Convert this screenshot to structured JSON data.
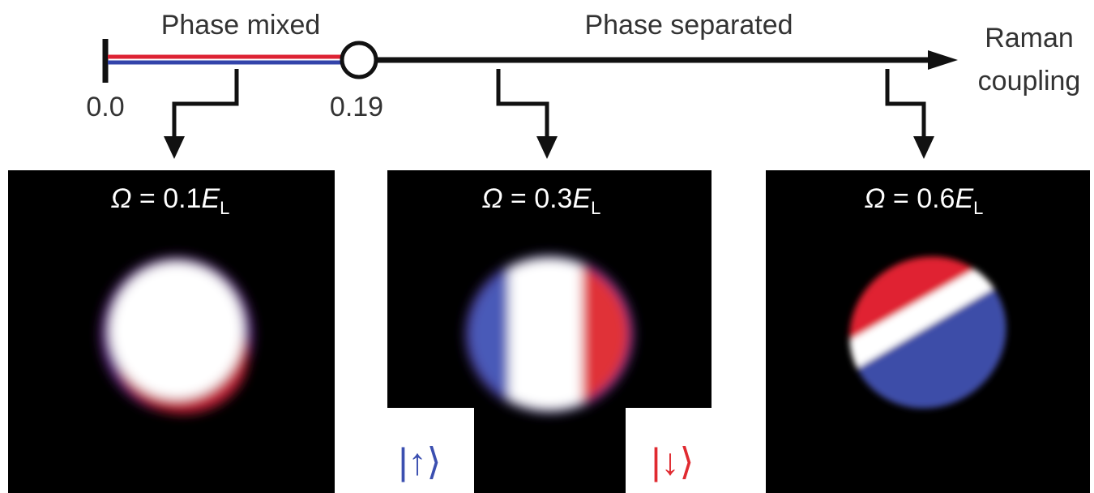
{
  "timeline": {
    "left_region": "Phase mixed",
    "right_region": "Phase separated",
    "axis_label": [
      "Raman",
      "coupling"
    ],
    "ticks": [
      "0.0",
      "0.19"
    ]
  },
  "panels": [
    {
      "symbol": "Ω",
      "equals": " = 0.1",
      "energy": "E",
      "subscript": "L"
    },
    {
      "symbol": "Ω",
      "equals": " = 0.3",
      "energy": "E",
      "subscript": "L"
    },
    {
      "symbol": "Ω",
      "equals": " = 0.6",
      "energy": "E",
      "subscript": "L"
    }
  ],
  "states": {
    "up": "|↑⟩",
    "down": "|↓⟩"
  }
}
